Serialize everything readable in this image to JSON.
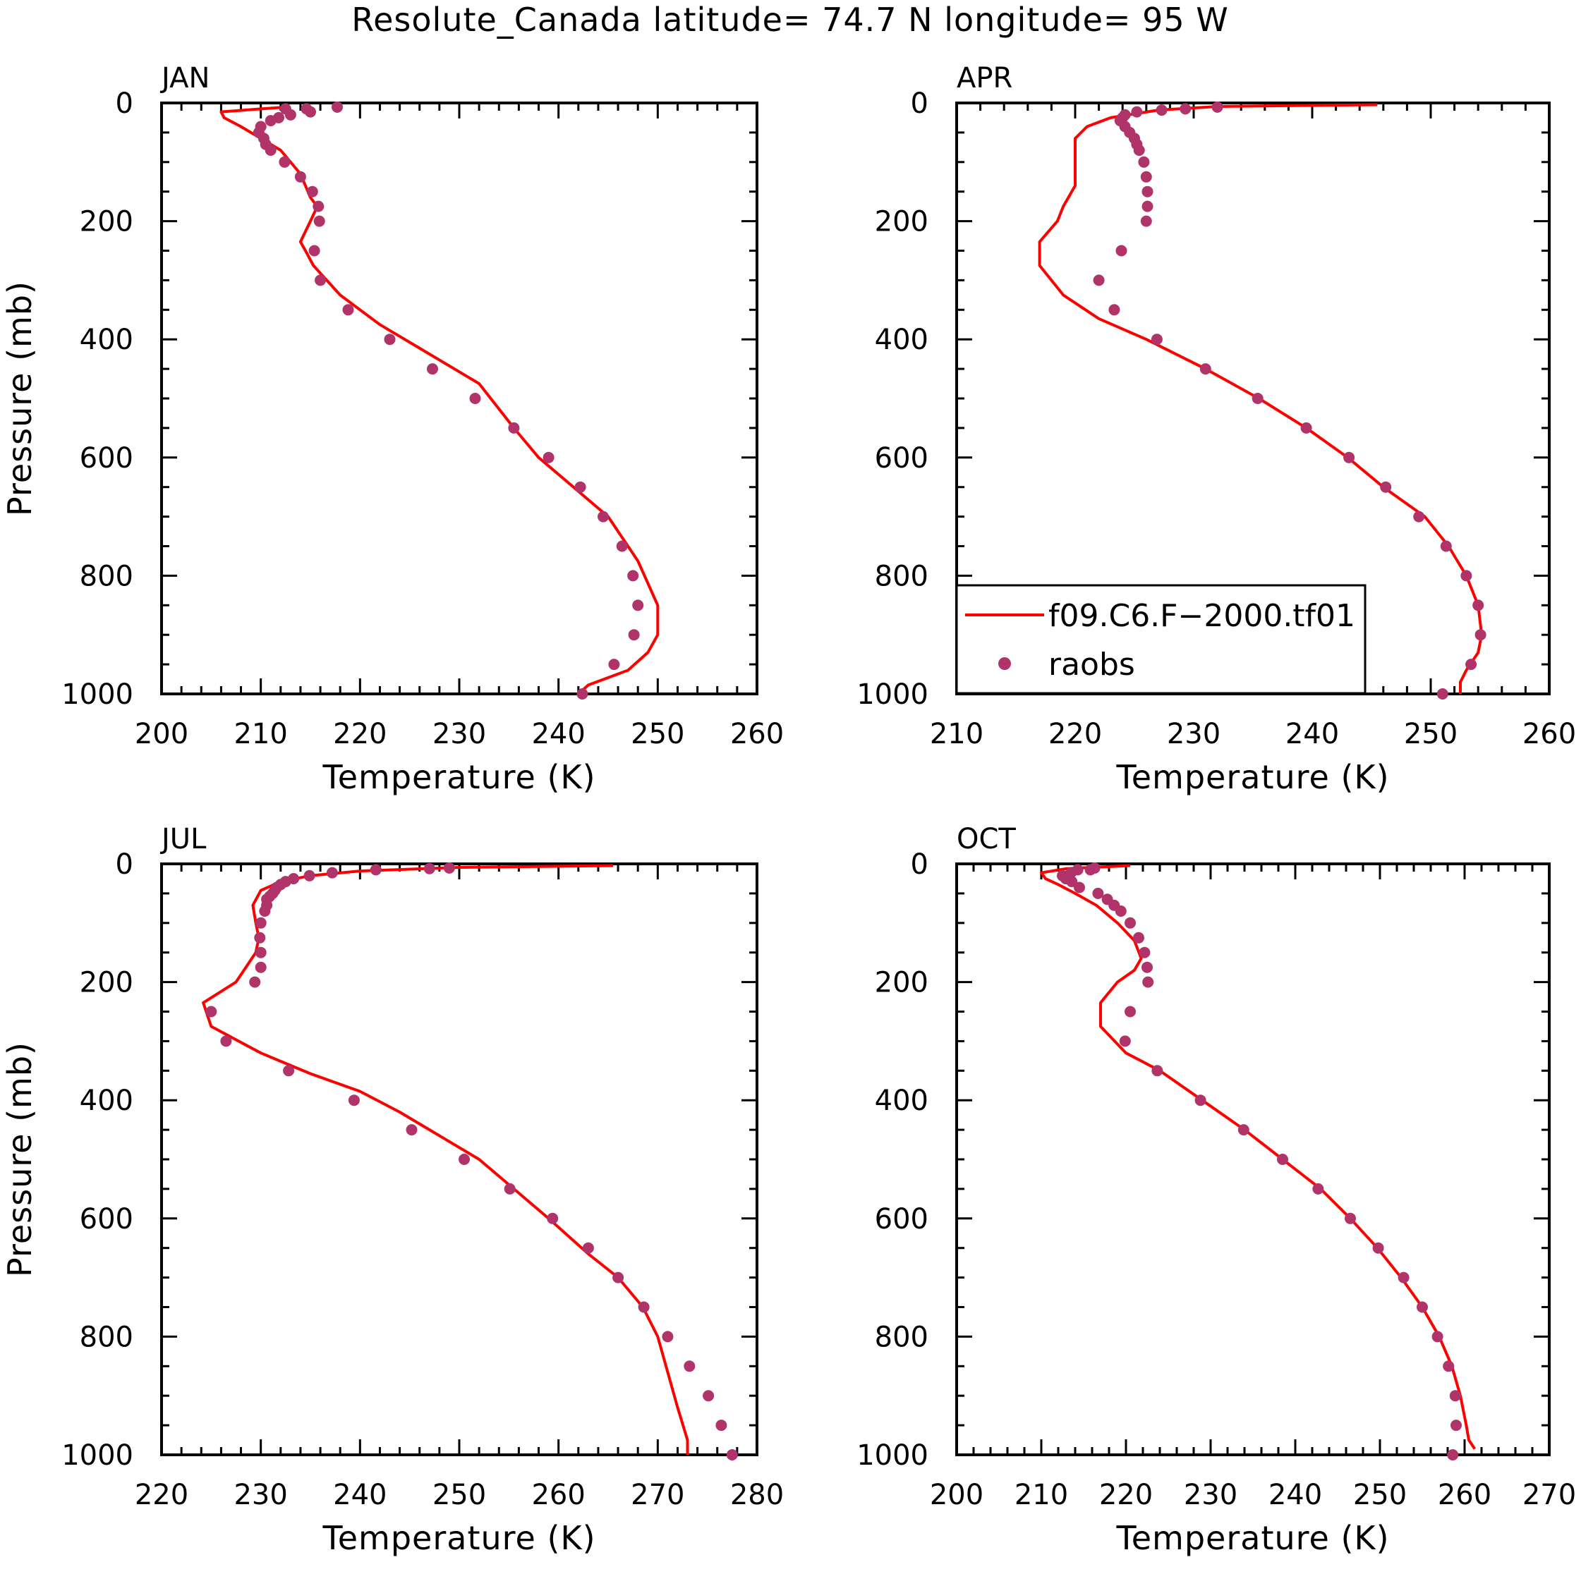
{
  "title": "Resolute_Canada  latitude= 74.7 N longitude= 95 W",
  "colors": {
    "model": "#ff0000",
    "obs": "#b0336a",
    "axis": "#000000"
  },
  "legend": {
    "model_label": "f09.C6.F−2000.tf01",
    "obs_label": "raobs"
  },
  "chart_data": [
    {
      "type": "line",
      "panel": "JAN",
      "xlabel": "Temperature (K)",
      "ylabel": "Pressure (mb)",
      "xlim": [
        200,
        260
      ],
      "ylim": [
        1000,
        0
      ],
      "xticks": [
        200,
        210,
        220,
        230,
        240,
        250,
        260
      ],
      "yticks": [
        0,
        200,
        400,
        600,
        800,
        1000
      ],
      "series": [
        {
          "name": "f09.C6.F−2000.tf01",
          "style": "line",
          "points": [
            [
              212.5,
              7
            ],
            [
              210,
              10
            ],
            [
              206,
              15
            ],
            [
              206.3,
              25
            ],
            [
              208,
              40
            ],
            [
              210,
              60
            ],
            [
              212,
              80
            ],
            [
              214,
              120
            ],
            [
              215,
              160
            ],
            [
              215.7,
              175
            ],
            [
              215,
              200
            ],
            [
              214,
              235
            ],
            [
              214.5,
              250
            ],
            [
              215.3,
              275
            ],
            [
              218,
              325
            ],
            [
              222,
              375
            ],
            [
              227,
              425
            ],
            [
              232,
              475
            ],
            [
              235.5,
              550
            ],
            [
              238,
              600
            ],
            [
              241.5,
              650
            ],
            [
              245,
              700
            ],
            [
              248,
              775
            ],
            [
              250,
              850
            ],
            [
              250,
              900
            ],
            [
              249,
              930
            ],
            [
              247,
              960
            ],
            [
              243,
              985
            ],
            [
              242,
              1000
            ]
          ]
        },
        {
          "name": "raobs",
          "style": "markers",
          "points": [
            [
              217.7,
              7
            ],
            [
              214.6,
              10
            ],
            [
              215,
              15
            ],
            [
              212.5,
              10
            ],
            [
              213,
              20
            ],
            [
              211.8,
              25
            ],
            [
              211,
              30
            ],
            [
              210,
              40
            ],
            [
              209.8,
              50
            ],
            [
              210.3,
              60
            ],
            [
              210.5,
              70
            ],
            [
              211,
              80
            ],
            [
              212.4,
              100
            ],
            [
              214,
              125
            ],
            [
              215.2,
              150
            ],
            [
              215.8,
              175
            ],
            [
              215.9,
              200
            ],
            [
              215.4,
              250
            ],
            [
              216,
              300
            ],
            [
              218.8,
              350
            ],
            [
              223,
              400
            ],
            [
              227.3,
              450
            ],
            [
              231.6,
              500
            ],
            [
              235.5,
              550
            ],
            [
              239,
              600
            ],
            [
              242.2,
              650
            ],
            [
              244.5,
              700
            ],
            [
              246.4,
              750
            ],
            [
              247.5,
              800
            ],
            [
              248,
              850
            ],
            [
              247.6,
              900
            ],
            [
              245.6,
              950
            ],
            [
              242.4,
              1000
            ]
          ]
        }
      ]
    },
    {
      "type": "line",
      "panel": "APR",
      "xlabel": "Temperature (K)",
      "ylabel": "",
      "xlim": [
        210,
        260
      ],
      "ylim": [
        1000,
        0
      ],
      "xticks": [
        210,
        220,
        230,
        240,
        250,
        260
      ],
      "yticks": [
        0,
        200,
        400,
        600,
        800,
        1000
      ],
      "legend_position": "bottom-left",
      "series": [
        {
          "name": "f09.C6.F−2000.tf01",
          "style": "line",
          "points": [
            [
              245.5,
              3
            ],
            [
              232,
              6
            ],
            [
              227,
              12
            ],
            [
              223,
              25
            ],
            [
              221,
              40
            ],
            [
              220,
              60
            ],
            [
              220,
              100
            ],
            [
              220,
              140
            ],
            [
              219,
              175
            ],
            [
              218.5,
              200
            ],
            [
              217,
              235
            ],
            [
              217,
              275
            ],
            [
              219,
              325
            ],
            [
              222,
              365
            ],
            [
              226,
              400
            ],
            [
              231,
              450
            ],
            [
              235.5,
              500
            ],
            [
              239.5,
              550
            ],
            [
              243,
              600
            ],
            [
              246,
              650
            ],
            [
              249.5,
              700
            ],
            [
              251.5,
              750
            ],
            [
              253,
              800
            ],
            [
              254,
              850
            ],
            [
              254.3,
              900
            ],
            [
              254,
              930
            ],
            [
              253,
              960
            ],
            [
              252.5,
              980
            ],
            [
              252.5,
              1000
            ]
          ]
        },
        {
          "name": "raobs",
          "style": "markers",
          "points": [
            [
              232,
              7
            ],
            [
              229.3,
              10
            ],
            [
              227.3,
              12
            ],
            [
              225.2,
              15
            ],
            [
              224.2,
              20
            ],
            [
              224,
              25
            ],
            [
              223.8,
              30
            ],
            [
              224.2,
              40
            ],
            [
              224.6,
              50
            ],
            [
              225,
              60
            ],
            [
              225.2,
              70
            ],
            [
              225.4,
              80
            ],
            [
              225.8,
              100
            ],
            [
              226,
              125
            ],
            [
              226.1,
              150
            ],
            [
              226.1,
              175
            ],
            [
              226,
              200
            ],
            [
              223.9,
              250
            ],
            [
              222,
              300
            ],
            [
              223.3,
              350
            ],
            [
              226.9,
              400
            ],
            [
              231,
              450
            ],
            [
              235.4,
              500
            ],
            [
              239.5,
              550
            ],
            [
              243.1,
              600
            ],
            [
              246.2,
              650
            ],
            [
              249,
              700
            ],
            [
              251.3,
              750
            ],
            [
              253,
              800
            ],
            [
              254,
              850
            ],
            [
              254.2,
              900
            ],
            [
              253.4,
              950
            ],
            [
              251,
              1000
            ]
          ]
        }
      ]
    },
    {
      "type": "line",
      "panel": "JUL",
      "xlabel": "Temperature (K)",
      "ylabel": "Pressure (mb)",
      "xlim": [
        220,
        280
      ],
      "ylim": [
        1000,
        0
      ],
      "xticks": [
        220,
        230,
        240,
        250,
        260,
        270,
        280
      ],
      "yticks": [
        0,
        200,
        400,
        600,
        800,
        1000
      ],
      "series": [
        {
          "name": "f09.C6.F−2000.tf01",
          "style": "line",
          "points": [
            [
              265.5,
              3
            ],
            [
              250,
              6
            ],
            [
              240,
              12
            ],
            [
              235,
              20
            ],
            [
              232,
              30
            ],
            [
              230,
              45
            ],
            [
              229.2,
              70
            ],
            [
              229.5,
              100
            ],
            [
              229.8,
              125
            ],
            [
              229.5,
              150
            ],
            [
              227.5,
              200
            ],
            [
              224.2,
              235
            ],
            [
              225,
              275
            ],
            [
              230,
              320
            ],
            [
              235,
              355
            ],
            [
              240,
              385
            ],
            [
              244,
              420
            ],
            [
              248,
              460
            ],
            [
              252,
              500
            ],
            [
              255.5,
              550
            ],
            [
              259,
              600
            ],
            [
              263,
              660
            ],
            [
              266,
              700
            ],
            [
              268.5,
              750
            ],
            [
              270,
              800
            ],
            [
              271,
              860
            ],
            [
              272,
              920
            ],
            [
              273,
              975
            ],
            [
              273,
              1000
            ]
          ]
        },
        {
          "name": "raobs",
          "style": "markers",
          "points": [
            [
              249,
              7
            ],
            [
              247,
              8
            ],
            [
              241.6,
              10
            ],
            [
              237.2,
              15
            ],
            [
              234.9,
              20
            ],
            [
              233.3,
              25
            ],
            [
              232.5,
              30
            ],
            [
              232,
              35
            ],
            [
              231.6,
              40
            ],
            [
              231.4,
              45
            ],
            [
              231.2,
              50
            ],
            [
              230.9,
              55
            ],
            [
              230.6,
              60
            ],
            [
              230.6,
              70
            ],
            [
              230.4,
              80
            ],
            [
              230,
              100
            ],
            [
              229.9,
              125
            ],
            [
              230,
              150
            ],
            [
              230,
              175
            ],
            [
              229.4,
              200
            ],
            [
              225,
              250
            ],
            [
              226.5,
              300
            ],
            [
              232.8,
              350
            ],
            [
              239.4,
              400
            ],
            [
              245.2,
              450
            ],
            [
              250.5,
              500
            ],
            [
              255.1,
              550
            ],
            [
              259.4,
              600
            ],
            [
              263,
              650
            ],
            [
              266,
              700
            ],
            [
              268.6,
              750
            ],
            [
              271,
              800
            ],
            [
              273.2,
              850
            ],
            [
              275.1,
              900
            ],
            [
              276.4,
              950
            ],
            [
              277.5,
              1000
            ]
          ]
        }
      ]
    },
    {
      "type": "line",
      "panel": "OCT",
      "xlabel": "Temperature (K)",
      "ylabel": "",
      "xlim": [
        200,
        270
      ],
      "ylim": [
        1000,
        0
      ],
      "xticks": [
        200,
        210,
        220,
        230,
        240,
        250,
        260,
        270
      ],
      "yticks": [
        0,
        200,
        400,
        600,
        800,
        1000
      ],
      "series": [
        {
          "name": "f09.C6.F−2000.tf01",
          "style": "line",
          "points": [
            [
              220.5,
              3
            ],
            [
              213,
              8
            ],
            [
              210,
              15
            ],
            [
              210.5,
              25
            ],
            [
              212,
              35
            ],
            [
              214,
              50
            ],
            [
              216.5,
              70
            ],
            [
              219,
              100
            ],
            [
              221,
              130
            ],
            [
              221.8,
              160
            ],
            [
              221,
              180
            ],
            [
              219,
              200
            ],
            [
              217,
              235
            ],
            [
              217,
              275
            ],
            [
              220,
              320
            ],
            [
              224,
              350
            ],
            [
              229,
              400
            ],
            [
              234,
              450
            ],
            [
              238.5,
              500
            ],
            [
              243,
              550
            ],
            [
              246.5,
              600
            ],
            [
              249.7,
              650
            ],
            [
              252.5,
              700
            ],
            [
              255,
              750
            ],
            [
              257,
              800
            ],
            [
              258.5,
              850
            ],
            [
              259.5,
              900
            ],
            [
              260.2,
              950
            ],
            [
              260.5,
              975
            ],
            [
              261.2,
              990
            ]
          ]
        },
        {
          "name": "raobs",
          "style": "markers",
          "points": [
            [
              216.3,
              7
            ],
            [
              215.8,
              10
            ],
            [
              214.3,
              10
            ],
            [
              213.5,
              15
            ],
            [
              212.5,
              20
            ],
            [
              212.9,
              25
            ],
            [
              213.6,
              30
            ],
            [
              214.5,
              40
            ],
            [
              216.7,
              50
            ],
            [
              217.8,
              60
            ],
            [
              218.6,
              70
            ],
            [
              219.4,
              80
            ],
            [
              220.5,
              100
            ],
            [
              221.5,
              125
            ],
            [
              222.2,
              150
            ],
            [
              222.5,
              175
            ],
            [
              222.6,
              200
            ],
            [
              220.5,
              250
            ],
            [
              219.9,
              300
            ],
            [
              223.7,
              350
            ],
            [
              228.8,
              400
            ],
            [
              233.9,
              450
            ],
            [
              238.5,
              500
            ],
            [
              242.7,
              550
            ],
            [
              246.5,
              600
            ],
            [
              249.8,
              650
            ],
            [
              252.8,
              700
            ],
            [
              255,
              750
            ],
            [
              256.8,
              800
            ],
            [
              258.1,
              850
            ],
            [
              258.9,
              900
            ],
            [
              259,
              950
            ],
            [
              258.6,
              1000
            ]
          ]
        }
      ]
    }
  ]
}
